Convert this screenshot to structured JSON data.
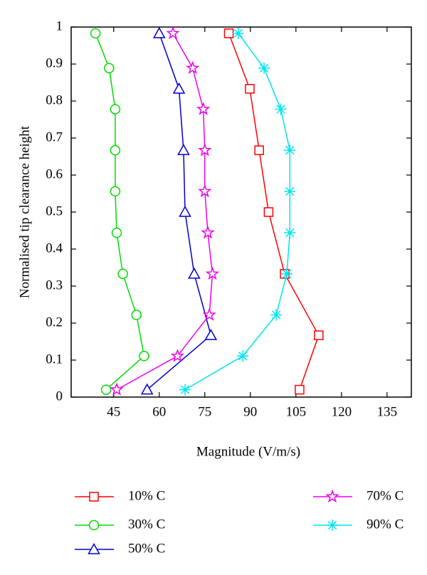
{
  "chart_data": {
    "type": "line",
    "x_label": "Magnitude (V/m/s)",
    "y_label": "Normalised tip clearance height",
    "xlim": [
      31,
      143
    ],
    "xticks": [
      45,
      60,
      75,
      90,
      105,
      120,
      135
    ],
    "ylim": [
      0,
      1
    ],
    "yticks": [
      0,
      0.1,
      0.2,
      0.3,
      0.4,
      0.5,
      0.6,
      0.7,
      0.8,
      0.9,
      1
    ],
    "series": [
      {
        "name": "10% C",
        "color": "#ff0000",
        "marker": "square",
        "x": [
          82.9,
          89.8,
          92.9,
          96,
          101.3,
          112.5,
          106.2
        ],
        "values": [
          0.983,
          0.833,
          0.667,
          0.5,
          0.333,
          0.167,
          0.02
        ]
      },
      {
        "name": "30% C",
        "color": "#00dd00",
        "marker": "circle",
        "x": [
          39,
          43.5,
          45.5,
          45.5,
          45.5,
          46,
          48,
          52.5,
          55,
          42.5
        ],
        "values": [
          0.983,
          0.889,
          0.778,
          0.667,
          0.556,
          0.444,
          0.333,
          0.222,
          0.111,
          0.02
        ]
      },
      {
        "name": "50% C",
        "color": "#0000cc",
        "marker": "triangle",
        "x": [
          60,
          66.5,
          68,
          68.5,
          71.5,
          77,
          56
        ],
        "values": [
          0.983,
          0.833,
          0.667,
          0.5,
          0.333,
          0.167,
          0.02
        ]
      },
      {
        "name": "70% C",
        "color": "#ee00ee",
        "marker": "star",
        "x": [
          64.5,
          71,
          74.5,
          75,
          75,
          76,
          77.5,
          76.5,
          66,
          46
        ],
        "values": [
          0.983,
          0.889,
          0.778,
          0.667,
          0.556,
          0.444,
          0.333,
          0.222,
          0.111,
          0.02
        ]
      },
      {
        "name": "90% C",
        "color": "#00e5ee",
        "marker": "asterisk",
        "x": [
          86,
          94.5,
          100,
          103,
          103,
          103,
          102,
          98.5,
          87.5,
          68.5
        ],
        "values": [
          0.983,
          0.889,
          0.778,
          0.667,
          0.556,
          0.444,
          0.333,
          0.222,
          0.111,
          0.02
        ]
      }
    ]
  }
}
